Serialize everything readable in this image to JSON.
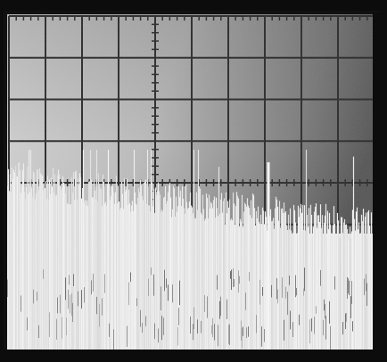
{
  "image": {
    "subject": "oscilloscope-screen-photograph",
    "graticule": {
      "columns": 10,
      "rows": 8
    },
    "colors": {
      "bezel": "#0c0c0c",
      "screen_light": "#d6d6d6",
      "screen_dark": "#4e4e4e",
      "gridline": "#1a1a1a",
      "trace": "#ffffff"
    }
  }
}
